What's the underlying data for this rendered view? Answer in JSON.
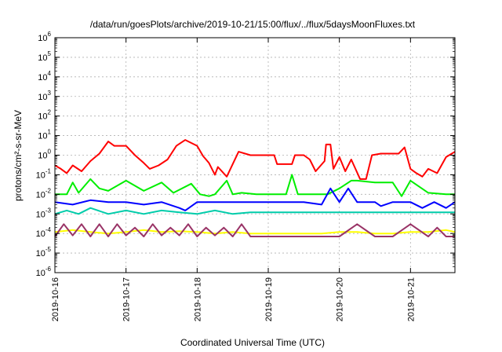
{
  "chart_data": {
    "type": "line",
    "title": "/data/run/goesPlots/archive/2019-10-21/15:00/flux/../flux/5daysMoonFluxes.txt",
    "xlabel": "Coordinated Universal Time (UTC)",
    "ylabel": "protons/cm²-s-sr-MeV",
    "y_scale": "log",
    "ylim": [
      1e-06,
      1000000.0
    ],
    "xlim": [
      "2019-10-16",
      "2019-10-21 15:00"
    ],
    "grid": true,
    "x_tick_labels": [
      "2019-10-16",
      "2019-10-17",
      "2019-10-18",
      "2019-10-19",
      "2019-10-20",
      "2019-10-21"
    ],
    "y_tick_labels": [
      {
        "base": "10",
        "exp": "-6"
      },
      {
        "base": "10",
        "exp": "-5"
      },
      {
        "base": "10",
        "exp": "-4"
      },
      {
        "base": "10",
        "exp": "-3"
      },
      {
        "base": "10",
        "exp": "-2"
      },
      {
        "base": "10",
        "exp": "-1"
      },
      {
        "base": "10",
        "exp": "0"
      },
      {
        "base": "10",
        "exp": "1"
      },
      {
        "base": "10",
        "exp": "2"
      },
      {
        "base": "10",
        "exp": "3"
      },
      {
        "base": "10",
        "exp": "4"
      },
      {
        "base": "10",
        "exp": "5"
      },
      {
        "base": "10",
        "exp": "6"
      }
    ],
    "series": [
      {
        "color": "#ff0000",
        "x": [
          "2019-10-16 00:00",
          "2019-10-16 02:00",
          "2019-10-16 04:00",
          "2019-10-16 06:00",
          "2019-10-16 09:00",
          "2019-10-16 12:00",
          "2019-10-16 15:00",
          "2019-10-16 18:00",
          "2019-10-16 20:00",
          "2019-10-17 00:00",
          "2019-10-17 03:00",
          "2019-10-17 06:00",
          "2019-10-17 08:00",
          "2019-10-17 11:00",
          "2019-10-17 14:00",
          "2019-10-17 17:00",
          "2019-10-17 20:00",
          "2019-10-18 00:00",
          "2019-10-18 02:00",
          "2019-10-18 04:00",
          "2019-10-18 06:00",
          "2019-10-18 07:00",
          "2019-10-18 10:00",
          "2019-10-18 14:00",
          "2019-10-18 18:00",
          "2019-10-18 22:00",
          "2019-10-19 00:00",
          "2019-10-19 02:00",
          "2019-10-19 03:00",
          "2019-10-19 08:00",
          "2019-10-19 09:00",
          "2019-10-19 12:00",
          "2019-10-19 14:00",
          "2019-10-19 16:00",
          "2019-10-19 19:00",
          "2019-10-19 19:30",
          "2019-10-19 21:00",
          "2019-10-19 22:00",
          "2019-10-20 00:00",
          "2019-10-20 02:00",
          "2019-10-20 04:00",
          "2019-10-20 07:00",
          "2019-10-20 09:00",
          "2019-10-20 11:00",
          "2019-10-20 14:00",
          "2019-10-20 17:00",
          "2019-10-20 20:00",
          "2019-10-20 22:00",
          "2019-10-21 00:00",
          "2019-10-21 02:00",
          "2019-10-21 04:00",
          "2019-10-21 06:00",
          "2019-10-21 09:00",
          "2019-10-21 12:00",
          "2019-10-21 15:00"
        ],
        "y": [
          0.3,
          0.2,
          0.12,
          0.3,
          0.15,
          0.5,
          1.2,
          5,
          3,
          3,
          1,
          0.4,
          0.2,
          0.3,
          0.6,
          3,
          6,
          3,
          0.9,
          0.4,
          0.1,
          0.25,
          0.08,
          1.5,
          1,
          1,
          1,
          1,
          0.35,
          0.35,
          1,
          1,
          0.6,
          0.15,
          0.5,
          3.5,
          3.5,
          0.2,
          0.8,
          0.15,
          0.6,
          0.06,
          0.06,
          1,
          1.2,
          1.2,
          1.2,
          2.5,
          0.2,
          0.12,
          0.08,
          0.2,
          0.12,
          0.8,
          1.5
        ]
      },
      {
        "color": "#00ee00",
        "x": [
          "2019-10-16 00:00",
          "2019-10-16 04:00",
          "2019-10-16 06:00",
          "2019-10-16 08:00",
          "2019-10-16 12:00",
          "2019-10-16 15:00",
          "2019-10-16 18:00",
          "2019-10-17 00:00",
          "2019-10-17 06:00",
          "2019-10-17 12:00",
          "2019-10-17 16:00",
          "2019-10-17 22:00",
          "2019-10-18 01:00",
          "2019-10-18 04:00",
          "2019-10-18 06:00",
          "2019-10-18 10:00",
          "2019-10-18 12:00",
          "2019-10-18 15:00",
          "2019-10-18 20:00",
          "2019-10-19 00:00",
          "2019-10-19 06:00",
          "2019-10-19 08:00",
          "2019-10-19 10:00",
          "2019-10-19 16:00",
          "2019-10-19 20:00",
          "2019-10-20 00:00",
          "2019-10-20 04:00",
          "2019-10-20 06:00",
          "2019-10-20 12:00",
          "2019-10-20 18:00",
          "2019-10-20 21:00",
          "2019-10-21 00:00",
          "2019-10-21 06:00",
          "2019-10-21 12:00",
          "2019-10-21 15:00"
        ],
        "y": [
          0.01,
          0.01,
          0.04,
          0.012,
          0.06,
          0.02,
          0.015,
          0.05,
          0.015,
          0.04,
          0.012,
          0.035,
          0.01,
          0.008,
          0.01,
          0.05,
          0.01,
          0.012,
          0.01,
          0.01,
          0.01,
          0.1,
          0.01,
          0.01,
          0.01,
          0.02,
          0.05,
          0.05,
          0.04,
          0.04,
          0.008,
          0.05,
          0.012,
          0.01,
          0.01
        ]
      },
      {
        "color": "#0000ff",
        "x": [
          "2019-10-16 00:00",
          "2019-10-16 06:00",
          "2019-10-16 12:00",
          "2019-10-16 18:00",
          "2019-10-17 00:00",
          "2019-10-17 06:00",
          "2019-10-17 12:00",
          "2019-10-17 18:00",
          "2019-10-17 20:00",
          "2019-10-18 00:00",
          "2019-10-18 06:00",
          "2019-10-18 12:00",
          "2019-10-18 18:00",
          "2019-10-19 00:00",
          "2019-10-19 06:00",
          "2019-10-19 12:00",
          "2019-10-19 18:00",
          "2019-10-19 21:00",
          "2019-10-20 00:00",
          "2019-10-20 03:00",
          "2019-10-20 06:00",
          "2019-10-20 12:00",
          "2019-10-20 14:00",
          "2019-10-20 18:00",
          "2019-10-21 00:00",
          "2019-10-21 04:00",
          "2019-10-21 08:00",
          "2019-10-21 12:00",
          "2019-10-21 15:00"
        ],
        "y": [
          0.004,
          0.003,
          0.005,
          0.004,
          0.004,
          0.003,
          0.004,
          0.002,
          0.0015,
          0.004,
          0.004,
          0.004,
          0.004,
          0.004,
          0.004,
          0.004,
          0.003,
          0.02,
          0.004,
          0.02,
          0.004,
          0.004,
          0.0025,
          0.004,
          0.004,
          0.002,
          0.004,
          0.002,
          0.004
        ]
      },
      {
        "color": "#00ccaa",
        "x": [
          "2019-10-16 00:00",
          "2019-10-16 04:00",
          "2019-10-16 08:00",
          "2019-10-16 12:00",
          "2019-10-16 18:00",
          "2019-10-17 00:00",
          "2019-10-17 06:00",
          "2019-10-17 12:00",
          "2019-10-17 18:00",
          "2019-10-18 00:00",
          "2019-10-18 06:00",
          "2019-10-18 12:00",
          "2019-10-18 18:00",
          "2019-10-19 00:00",
          "2019-10-19 08:00",
          "2019-10-19 12:00",
          "2019-10-19 18:00",
          "2019-10-20 00:00",
          "2019-10-20 06:00",
          "2019-10-20 12:00",
          "2019-10-20 18:00",
          "2019-10-21 00:00",
          "2019-10-21 06:00",
          "2019-10-21 12:00",
          "2019-10-21 15:00"
        ],
        "y": [
          0.001,
          0.0015,
          0.001,
          0.002,
          0.001,
          0.0015,
          0.001,
          0.0015,
          0.0012,
          0.001,
          0.0015,
          0.001,
          0.0012,
          0.0012,
          0.0012,
          0.0012,
          0.0012,
          0.0012,
          0.0012,
          0.0012,
          0.0012,
          0.0012,
          0.0012,
          0.0012,
          0.0012
        ]
      },
      {
        "color": "#ffff00",
        "x": [
          "2019-10-16 00:00",
          "2019-10-16 06:00",
          "2019-10-16 12:00",
          "2019-10-16 18:00",
          "2019-10-17 00:00",
          "2019-10-17 06:00",
          "2019-10-17 12:00",
          "2019-10-17 18:00",
          "2019-10-18 00:00",
          "2019-10-18 06:00",
          "2019-10-18 12:00",
          "2019-10-18 18:00",
          "2019-10-19 00:00",
          "2019-10-19 06:00",
          "2019-10-19 12:00",
          "2019-10-19 18:00",
          "2019-10-20 00:00",
          "2019-10-20 06:00",
          "2019-10-20 12:00",
          "2019-10-20 18:00",
          "2019-10-21 00:00",
          "2019-10-21 06:00",
          "2019-10-21 12:00",
          "2019-10-21 15:00"
        ],
        "y": [
          0.00012,
          0.00015,
          0.00012,
          0.0001,
          0.00012,
          0.00015,
          0.00012,
          0.00013,
          0.00012,
          0.0001,
          0.00012,
          0.0001,
          0.0001,
          0.0001,
          0.0001,
          0.0001,
          0.00012,
          0.00012,
          0.0001,
          0.0001,
          0.00012,
          0.00012,
          0.00015,
          0.00012
        ]
      },
      {
        "color": "#993366",
        "x": [
          "2019-10-16 00:00",
          "2019-10-16 03:00",
          "2019-10-16 06:00",
          "2019-10-16 09:00",
          "2019-10-16 12:00",
          "2019-10-16 15:00",
          "2019-10-16 18:00",
          "2019-10-16 21:00",
          "2019-10-17 00:00",
          "2019-10-17 03:00",
          "2019-10-17 06:00",
          "2019-10-17 09:00",
          "2019-10-17 12:00",
          "2019-10-17 15:00",
          "2019-10-17 18:00",
          "2019-10-17 21:00",
          "2019-10-18 00:00",
          "2019-10-18 03:00",
          "2019-10-18 06:00",
          "2019-10-18 09:00",
          "2019-10-18 12:00",
          "2019-10-18 15:00",
          "2019-10-18 18:00",
          "2019-10-19 00:00",
          "2019-10-19 06:00",
          "2019-10-19 12:00",
          "2019-10-19 18:00",
          "2019-10-20 00:00",
          "2019-10-20 06:00",
          "2019-10-20 12:00",
          "2019-10-20 18:00",
          "2019-10-21 00:00",
          "2019-10-21 06:00",
          "2019-10-21 09:00",
          "2019-10-21 12:00",
          "2019-10-21 15:00"
        ],
        "y": [
          7e-05,
          0.0003,
          8e-05,
          0.0003,
          7e-05,
          0.0003,
          7e-05,
          0.0003,
          8e-05,
          0.0002,
          7e-05,
          0.0003,
          8e-05,
          0.0002,
          8e-05,
          0.0003,
          7e-05,
          0.0002,
          8e-05,
          0.0002,
          7e-05,
          0.0003,
          7e-05,
          7e-05,
          7e-05,
          7e-05,
          7e-05,
          7e-05,
          0.0003,
          7e-05,
          7e-05,
          0.0003,
          7e-05,
          0.0002,
          7e-05,
          7e-05
        ]
      }
    ]
  }
}
